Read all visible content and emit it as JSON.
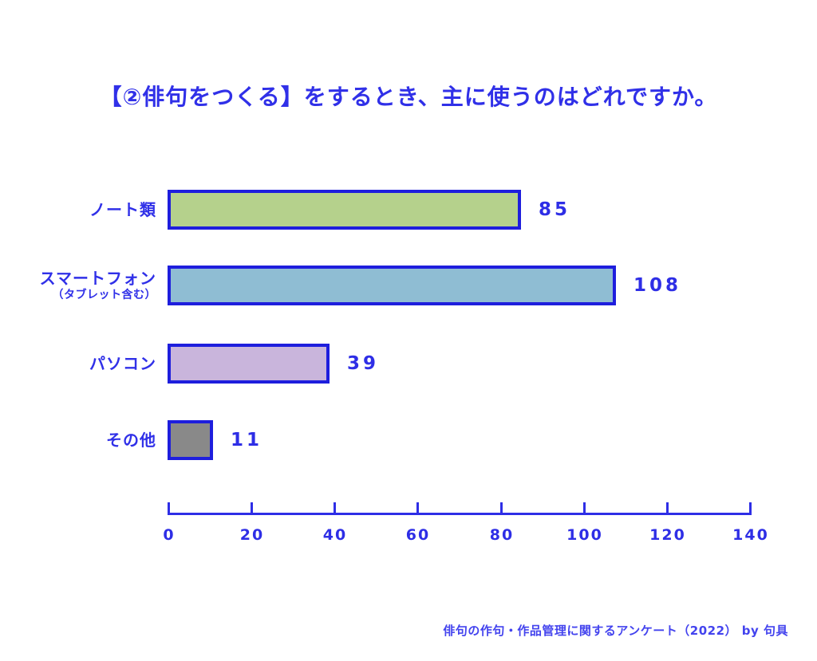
{
  "title": "【②俳句をつくる】をするとき、主に使うのはどれですか。",
  "footer": "俳句の作句・作品管理に関するアンケート（2022） by 句具",
  "colors": {
    "text_blue": "#3030e8",
    "bar_border_blue": "#1e1edd",
    "axis_blue": "#2e2ee6",
    "footer_blue": "#4343ee",
    "background": "#ffffff"
  },
  "chart_data": {
    "type": "bar",
    "orientation": "horizontal",
    "title": "【②俳句をつくる】をするとき、主に使うのはどれですか。",
    "categories": [
      "ノート類",
      "スマートフォン（タブレット含む）",
      "パソコン",
      "その他"
    ],
    "values": [
      85,
      108,
      39,
      11
    ],
    "bar_colors": [
      "#b5d18c",
      "#8fbdd3",
      "#c9b5dc",
      "#898989"
    ],
    "items": [
      {
        "label": "ノート類",
        "sublabel": "",
        "value": 85,
        "color": "#b5d18c"
      },
      {
        "label": "スマートフォン",
        "sublabel": "（タブレット含む）",
        "value": 108,
        "color": "#8fbdd3"
      },
      {
        "label": "パソコン",
        "sublabel": "",
        "value": 39,
        "color": "#c9b5dc"
      },
      {
        "label": "その他",
        "sublabel": "",
        "value": 11,
        "color": "#898989"
      }
    ],
    "xlim": [
      0,
      140
    ],
    "xticks": [
      0,
      20,
      40,
      60,
      80,
      100,
      120,
      140
    ],
    "grid": false,
    "legend": false,
    "value_labels": true,
    "source": "俳句の作句・作品管理に関するアンケート（2022） by 句具"
  }
}
